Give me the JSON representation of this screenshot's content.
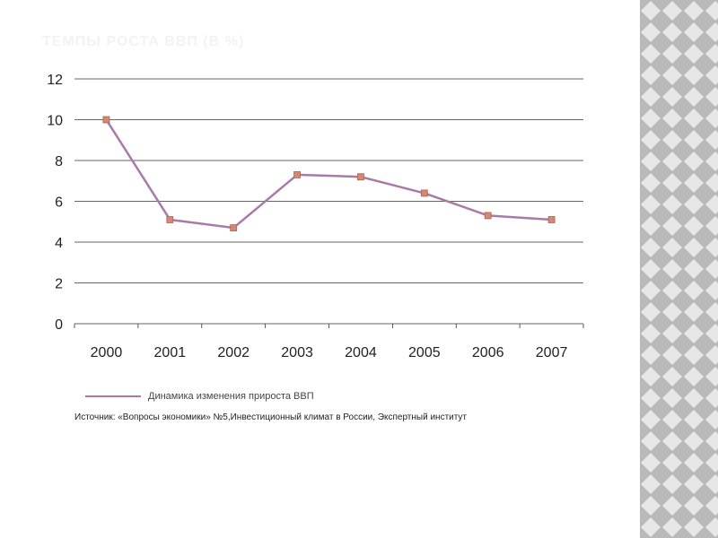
{
  "slide": {
    "title": "ТЕМПЫ РОСТА ВВП (В %)",
    "source": "Источник: «Вопросы экономики» №5,Инвестиционный климат в России, Экспертный институт"
  },
  "chart_data": {
    "type": "line",
    "categories": [
      "2000",
      "2001",
      "2002",
      "2003",
      "2004",
      "2005",
      "2006",
      "2007"
    ],
    "series": [
      {
        "name": "Динамика изменения прироста ВВП",
        "values": [
          10.0,
          5.1,
          4.7,
          7.3,
          7.2,
          6.4,
          5.3,
          5.1
        ]
      }
    ],
    "ylim": [
      0,
      12
    ],
    "yticks": [
      0,
      2,
      4,
      6,
      8,
      10,
      12
    ],
    "grid": true,
    "legend": "bottom",
    "colors": {
      "line": "#a87aa8",
      "marker": "#d7866f",
      "marker_edge": "#a66656",
      "grid": "#333333"
    }
  },
  "decoration": {
    "stripe_light": "#e6e6e6",
    "stripe_dark": "#b9b9b9"
  }
}
